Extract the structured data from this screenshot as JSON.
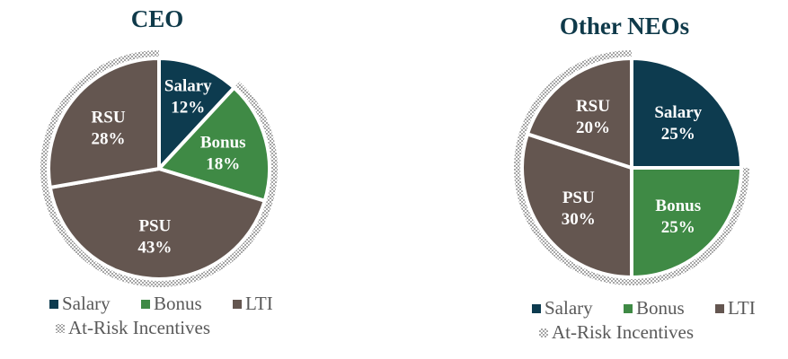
{
  "chart_data": [
    {
      "type": "pie",
      "title": "CEO",
      "slices": [
        {
          "label": "Salary",
          "value": 12,
          "display": "12%",
          "group": "Salary"
        },
        {
          "label": "Bonus",
          "value": 18,
          "display": "18%",
          "group": "Bonus"
        },
        {
          "label": "PSU",
          "value": 43,
          "display": "43%",
          "group": "LTI"
        },
        {
          "label": "RSU",
          "value": 28,
          "display": "28%",
          "group": "LTI"
        }
      ],
      "outer_ring": {
        "label": "At-Risk Incentives",
        "covers": [
          "Bonus",
          "PSU",
          "RSU"
        ]
      }
    },
    {
      "type": "pie",
      "title": "Other NEOs",
      "slices": [
        {
          "label": "Salary",
          "value": 25,
          "display": "25%",
          "group": "Salary"
        },
        {
          "label": "Bonus",
          "value": 25,
          "display": "25%",
          "group": "Bonus"
        },
        {
          "label": "PSU",
          "value": 30,
          "display": "30%",
          "group": "LTI"
        },
        {
          "label": "RSU",
          "value": 20,
          "display": "20%",
          "group": "LTI"
        }
      ],
      "outer_ring": {
        "label": "At-Risk Incentives",
        "covers": [
          "Bonus",
          "PSU",
          "RSU"
        ]
      }
    }
  ],
  "legend": {
    "entries": [
      "Salary",
      "Bonus",
      "LTI"
    ],
    "ring_entry": "At-Risk Incentives",
    "placement": "bottom"
  },
  "colors": {
    "Salary": "#0d3b4f",
    "Bonus": "#3f8a45",
    "LTI": "#645650",
    "ring": "#a6a6a6",
    "title": "#0f3a4a"
  }
}
